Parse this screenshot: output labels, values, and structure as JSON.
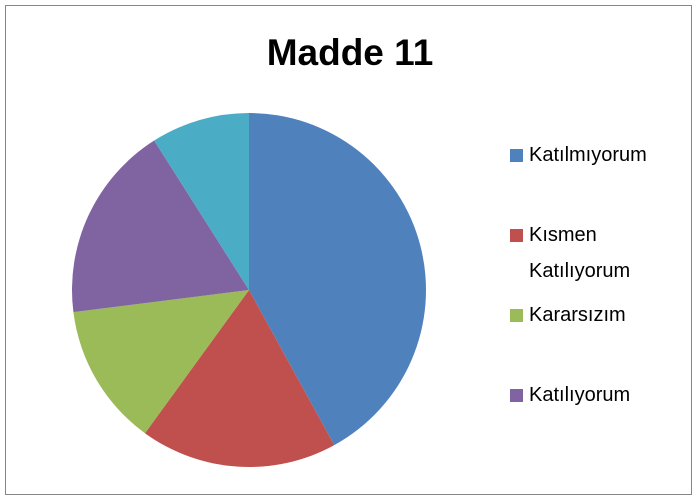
{
  "chart_data": {
    "type": "pie",
    "title": "Madde 11",
    "categories": [
      "Katılmıyorum",
      "Kısmen Katılıyorum",
      "Kararsızım",
      "Katılıyorum",
      null
    ],
    "values": [
      42,
      18,
      13,
      18,
      9
    ],
    "colors": [
      "#4f81bd",
      "#c0504d",
      "#9bbb59",
      "#8064a2",
      "#4bacc6"
    ],
    "legend": "right"
  }
}
